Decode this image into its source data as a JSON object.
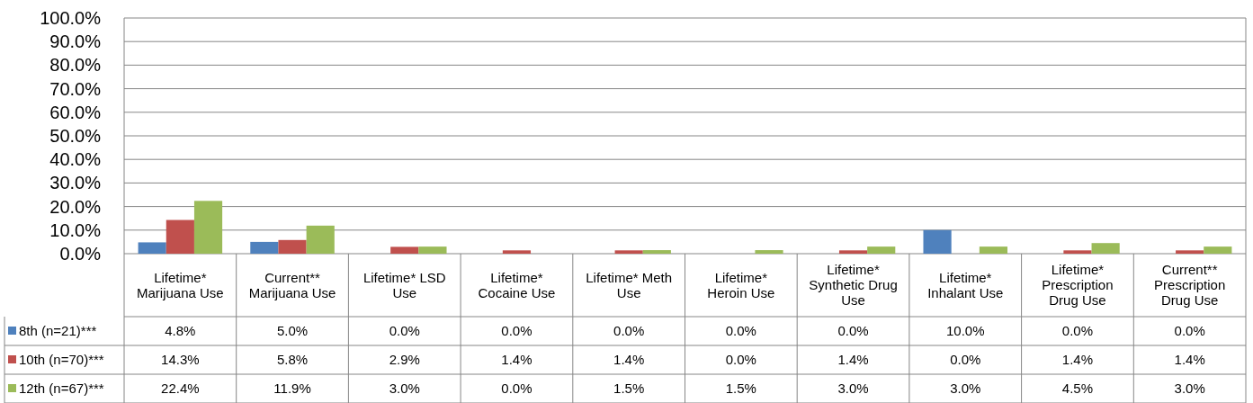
{
  "chart_data": {
    "type": "bar",
    "categories": [
      "Lifetime* Marijuana Use",
      "Current** Marijuana Use",
      "Lifetime* LSD Use",
      "Lifetime* Cocaine Use",
      "Lifetime* Meth Use",
      "Lifetime* Heroin Use",
      "Lifetime* Synthetic Drug Use",
      "Lifetime* Inhalant Use",
      "Lifetime* Prescription Drug Use",
      "Current** Prescription Drug Use"
    ],
    "series": [
      {
        "name": "8th (n=21)***",
        "color": "#4f81bd",
        "values": [
          4.8,
          5.0,
          0.0,
          0.0,
          0.0,
          0.0,
          0.0,
          10.0,
          0.0,
          0.0
        ],
        "value_labels": [
          "4.8%",
          "5.0%",
          "0.0%",
          "0.0%",
          "0.0%",
          "0.0%",
          "0.0%",
          "10.0%",
          "0.0%",
          "0.0%"
        ]
      },
      {
        "name": "10th (n=70)***",
        "color": "#c0504d",
        "values": [
          14.3,
          5.8,
          2.9,
          1.4,
          1.4,
          0.0,
          1.4,
          0.0,
          1.4,
          1.4
        ],
        "value_labels": [
          "14.3%",
          "5.8%",
          "2.9%",
          "1.4%",
          "1.4%",
          "0.0%",
          "1.4%",
          "0.0%",
          "1.4%",
          "1.4%"
        ]
      },
      {
        "name": "12th (n=67)***",
        "color": "#9bbb59",
        "values": [
          22.4,
          11.9,
          3.0,
          0.0,
          1.5,
          1.5,
          3.0,
          3.0,
          4.5,
          3.0
        ],
        "value_labels": [
          "22.4%",
          "11.9%",
          "3.0%",
          "0.0%",
          "1.5%",
          "1.5%",
          "3.0%",
          "3.0%",
          "4.5%",
          "3.0%"
        ]
      }
    ],
    "ylim": [
      0,
      100
    ],
    "yticks": [
      {
        "value": 0,
        "label": "0.0%"
      },
      {
        "value": 10,
        "label": "10.0%"
      },
      {
        "value": 20,
        "label": "20.0%"
      },
      {
        "value": 30,
        "label": "30.0%"
      },
      {
        "value": 40,
        "label": "40.0%"
      },
      {
        "value": 50,
        "label": "50.0%"
      },
      {
        "value": 60,
        "label": "60.0%"
      },
      {
        "value": 70,
        "label": "70.0%"
      },
      {
        "value": 80,
        "label": "80.0%"
      },
      {
        "value": 90,
        "label": "90.0%"
      },
      {
        "value": 100,
        "label": "100.0%"
      }
    ],
    "grid": "y",
    "legend": "bottom left"
  }
}
